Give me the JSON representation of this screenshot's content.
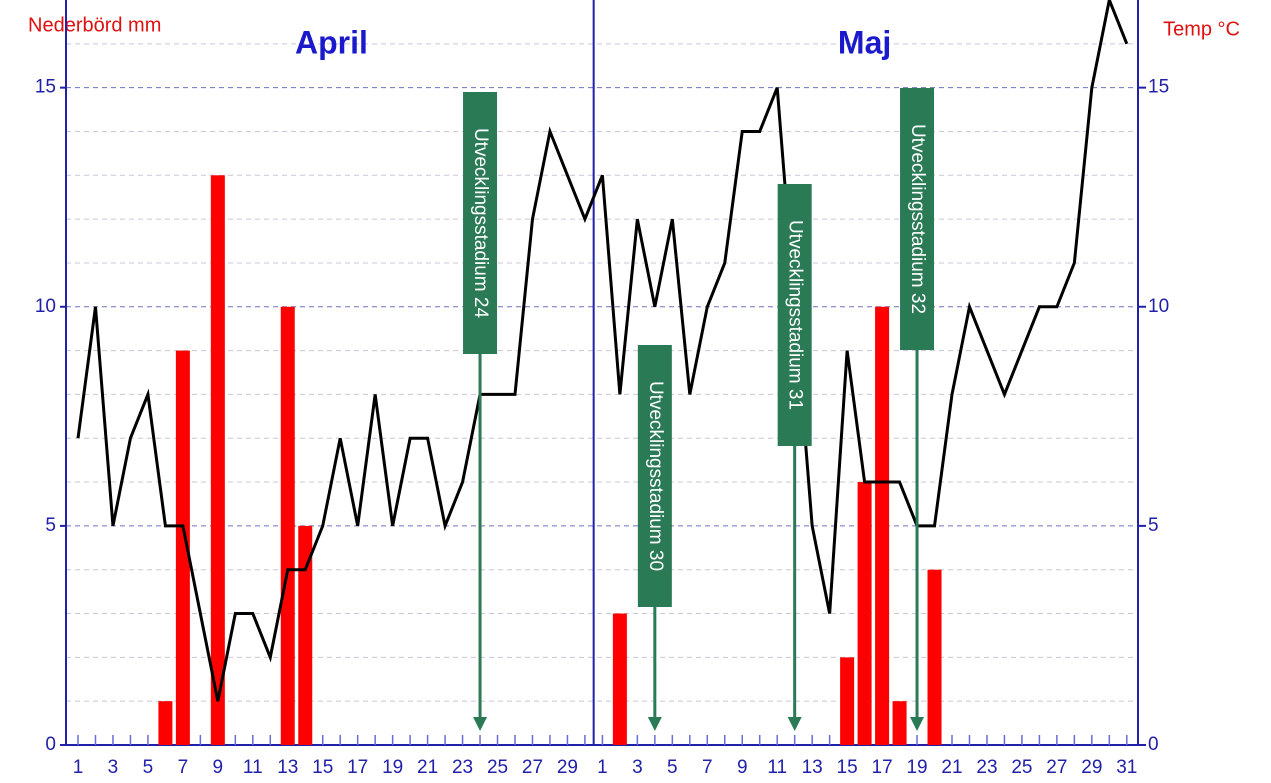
{
  "chart_data": {
    "type": "bar-line",
    "ylabel": "Nederbörd mm",
    "y2label": "Temp °C",
    "groups": [
      {
        "label": "April",
        "categories": [
          "1",
          null,
          "3",
          null,
          "5",
          null,
          "7",
          null,
          "9",
          null,
          "11",
          null,
          "13",
          null,
          "15",
          null,
          "17",
          null,
          "19",
          null,
          "21",
          null,
          "23",
          null,
          "25",
          null,
          "27",
          null,
          "29",
          null
        ]
      },
      {
        "label": "Maj",
        "categories": [
          "1",
          null,
          "3",
          null,
          "5",
          null,
          "7",
          null,
          "9",
          null,
          "11",
          null,
          "13",
          null,
          "15",
          null,
          "17",
          null,
          "19",
          null,
          "21",
          null,
          "23",
          null,
          "25",
          null,
          "27",
          null,
          "29",
          null,
          "31"
        ]
      }
    ],
    "series": [
      {
        "name": "Nederbörd",
        "type": "bar",
        "color": "#ff0000",
        "values": [
          0,
          0,
          0,
          0,
          0,
          1,
          9,
          0,
          13,
          0,
          0,
          0,
          10,
          5,
          0,
          0,
          0,
          0,
          0,
          0,
          0,
          0,
          0,
          0,
          0,
          0,
          0,
          0,
          0,
          0,
          0,
          3,
          0,
          0,
          0,
          0,
          0,
          0,
          0,
          0,
          0,
          0,
          0,
          0,
          2,
          6,
          10,
          1,
          0,
          4,
          0,
          0,
          0,
          0,
          0,
          0,
          0,
          0,
          0,
          0,
          0
        ]
      },
      {
        "name": "Temp",
        "type": "line",
        "axis": "y2",
        "color": "#000000",
        "values": [
          7,
          10,
          5,
          7,
          8,
          5,
          5,
          3,
          1,
          3,
          3,
          2,
          4,
          4,
          5,
          7,
          5,
          8,
          5,
          7,
          7,
          5,
          6,
          8,
          8,
          8,
          12,
          14,
          13,
          12,
          13,
          8,
          12,
          10,
          12,
          8,
          10,
          11,
          14,
          14,
          15,
          10,
          5,
          3,
          9,
          6,
          6,
          6,
          5,
          5,
          8,
          10,
          9,
          8,
          9,
          10,
          10,
          11,
          15,
          17,
          16
        ]
      }
    ],
    "annotations": [
      {
        "text": "Utvecklingsstadium 24",
        "x": 23
      },
      {
        "text": "Utvecklingsstadium 30",
        "x": 33
      },
      {
        "text": "Utvecklingsstadium 31",
        "x": 41
      },
      {
        "text": "Utvecklingsstadium 32",
        "x": 48
      }
    ],
    "ylim": [
      0,
      17
    ],
    "yticks": [
      0,
      5,
      10,
      15
    ],
    "y2lim": [
      0,
      17
    ],
    "y2ticks": [
      0,
      5,
      10,
      15
    ],
    "yticks_minor": [
      1,
      2,
      3,
      4,
      6,
      7,
      8,
      9,
      11,
      12,
      13,
      14,
      16
    ],
    "grid": true
  }
}
